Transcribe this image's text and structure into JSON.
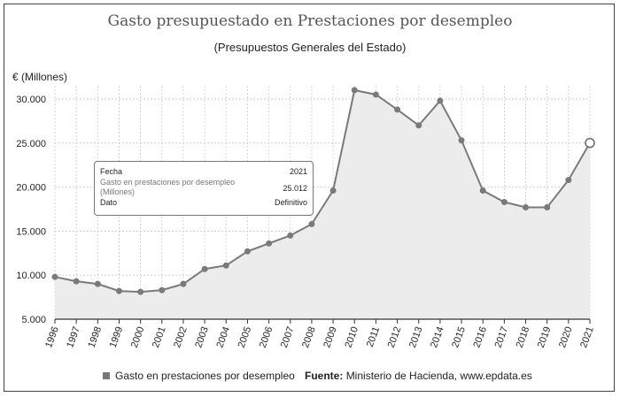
{
  "chart_data": {
    "type": "line",
    "title": "Gasto presupuestado en Prestaciones por desempleo",
    "subtitle": "(Presupuestos Generales del Estado)",
    "ylabel": "€ (Millones)",
    "xlabel": "",
    "ylim": [
      5000,
      31500
    ],
    "yticks": [
      5000,
      10000,
      15000,
      20000,
      25000,
      30000
    ],
    "ytick_labels": [
      "5.000",
      "10.000",
      "15.000",
      "20.000",
      "25.000",
      "30.000"
    ],
    "grid": true,
    "legend_position": "bottom-left",
    "categories": [
      "1996",
      "1997",
      "1998",
      "1999",
      "2000",
      "2001",
      "2002",
      "2003",
      "2004",
      "2005",
      "2006",
      "2007",
      "2008",
      "2009",
      "2010",
      "2011",
      "2012",
      "2013",
      "2014",
      "2015",
      "2016",
      "2017",
      "2018",
      "2019",
      "2020",
      "2021"
    ],
    "series": [
      {
        "name": "Gasto en prestaciones por desempleo",
        "color": "#7a7a7a",
        "values": [
          9800,
          9300,
          9000,
          8200,
          8100,
          8300,
          9000,
          10700,
          11100,
          12700,
          13600,
          14500,
          15800,
          19600,
          31000,
          30500,
          28800,
          27000,
          29800,
          25300,
          19600,
          18300,
          17700,
          17700,
          20800,
          25012
        ]
      }
    ],
    "highlighted_point": 25
  },
  "tooltip": {
    "fecha_label": "Fecha",
    "fecha_value": "2021",
    "series_label_line1": "Gasto en prestaciones por desempleo",
    "series_label_line2": "(Millones)",
    "series_value": "25.012",
    "dato_label": "Dato",
    "dato_value": "Definitivo"
  },
  "legend": {
    "label": "Gasto en prestaciones por desempleo"
  },
  "source": {
    "label": "Fuente:",
    "text": "Ministerio de Hacienda, www.epdata.es"
  }
}
